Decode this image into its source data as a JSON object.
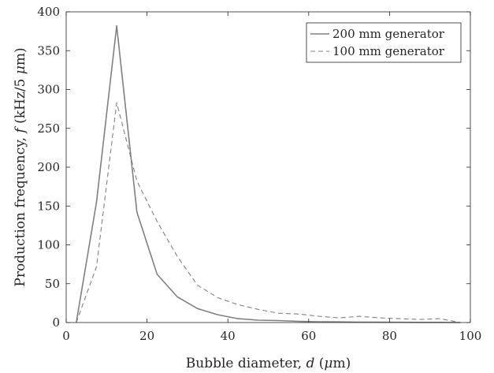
{
  "chart_data": {
    "type": "line",
    "xlabel": "Bubble diameter, d (μm)",
    "ylabel": "Production frequency, f (kHz/5 μm)",
    "xlim": [
      0,
      100
    ],
    "ylim": [
      0,
      400
    ],
    "xticks": [
      "0",
      "20",
      "40",
      "60",
      "80",
      "100"
    ],
    "yticks": [
      "0",
      "50",
      "100",
      "150",
      "200",
      "250",
      "300",
      "350",
      "400"
    ],
    "grid": false,
    "legend_position": "top-right",
    "series": [
      {
        "name": "200 mm generator",
        "style": "solid",
        "color": "#808080",
        "x": [
          2.5,
          7.5,
          12.5,
          17.5,
          22.5,
          27.5,
          32.5,
          37.5,
          42.5,
          47.5,
          52.5,
          57.5,
          62.5,
          67.5,
          72.5,
          77.5,
          82.5,
          87.5,
          92.5,
          97.5
        ],
        "y": [
          0,
          155,
          382,
          142,
          62,
          33,
          18,
          10,
          5,
          3,
          2.5,
          1.5,
          1,
          0.8,
          0.5,
          0.4,
          0.3,
          0.2,
          0.2,
          0
        ]
      },
      {
        "name": "100 mm generator",
        "style": "dashed",
        "color": "#808080",
        "x": [
          2.5,
          7.5,
          12.5,
          17.5,
          22.5,
          27.5,
          32.5,
          37.5,
          42.5,
          47.5,
          52.5,
          57.5,
          62.5,
          67.5,
          72.5,
          77.5,
          82.5,
          87.5,
          92.5,
          97.5
        ],
        "y": [
          0,
          72,
          283,
          182,
          130,
          85,
          48,
          32,
          23,
          17,
          12,
          11,
          8,
          6,
          8,
          6,
          5,
          4,
          5,
          0
        ]
      }
    ]
  }
}
